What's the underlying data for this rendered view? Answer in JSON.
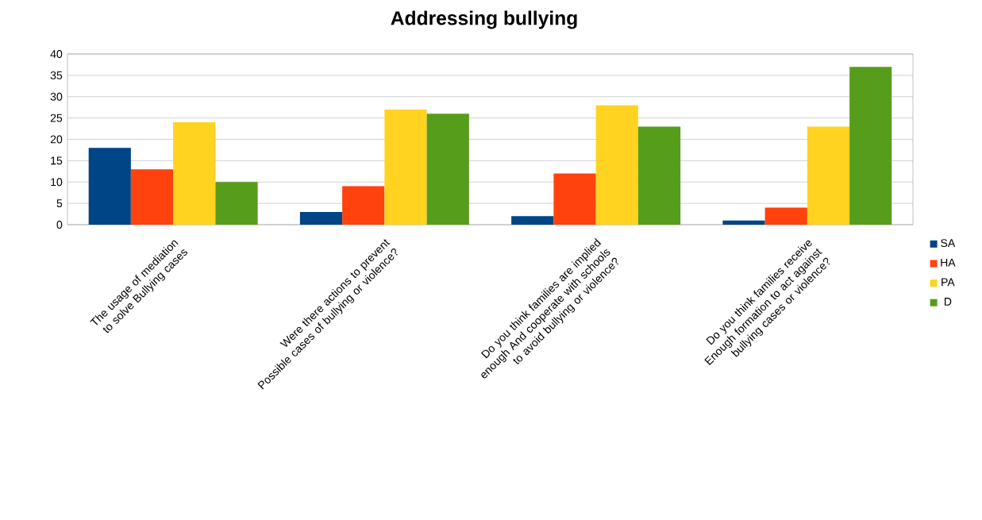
{
  "chart_data": {
    "type": "bar",
    "title": "Addressing bullying",
    "categories": [
      "The usage of mediation to solve Bullying cases",
      "Were there actions to prevent Possible cases of bullying or violence?",
      "Do you think families are implied enough And cooperate with schools to avoid bullying or violence?",
      "Do you think families receive Enough formation to act against bullying cases or violence?"
    ],
    "series": [
      {
        "name": "SA",
        "color": "#004586",
        "values": [
          18,
          3,
          2,
          1
        ]
      },
      {
        "name": "HA",
        "color": "#ff420e",
        "values": [
          13,
          9,
          12,
          4
        ]
      },
      {
        "name": "PA",
        "color": "#ffd320",
        "values": [
          24,
          27,
          28,
          23
        ]
      },
      {
        "name": "D",
        "color": "#579d1c",
        "values": [
          10,
          26,
          23,
          37
        ]
      }
    ],
    "ylim": [
      0,
      40
    ],
    "yticks": [
      0,
      5,
      10,
      15,
      20,
      25,
      30,
      35,
      40
    ],
    "grid": "y",
    "legend": "right"
  }
}
